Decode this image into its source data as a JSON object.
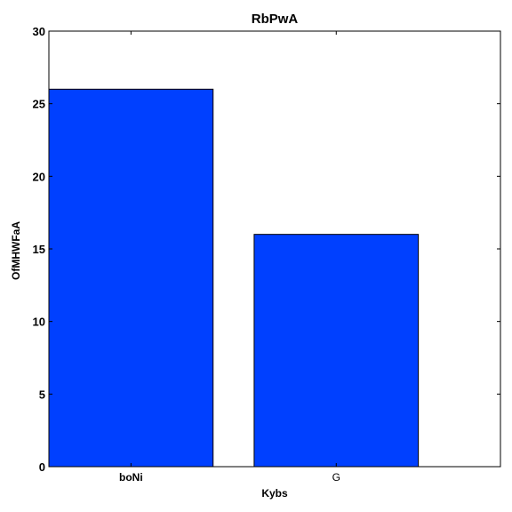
{
  "chart_data": {
    "type": "bar",
    "title": "RbPwA",
    "xlabel": "Kybs",
    "ylabel": "OfMHWFaA",
    "categories": [
      "boNi",
      "G"
    ],
    "values": [
      26,
      16
    ],
    "ylim": [
      0,
      30
    ],
    "yticks": [
      0,
      5,
      10,
      15,
      20,
      25,
      30
    ],
    "bar_color": "#0040ff",
    "grid": false,
    "legend": "none"
  }
}
